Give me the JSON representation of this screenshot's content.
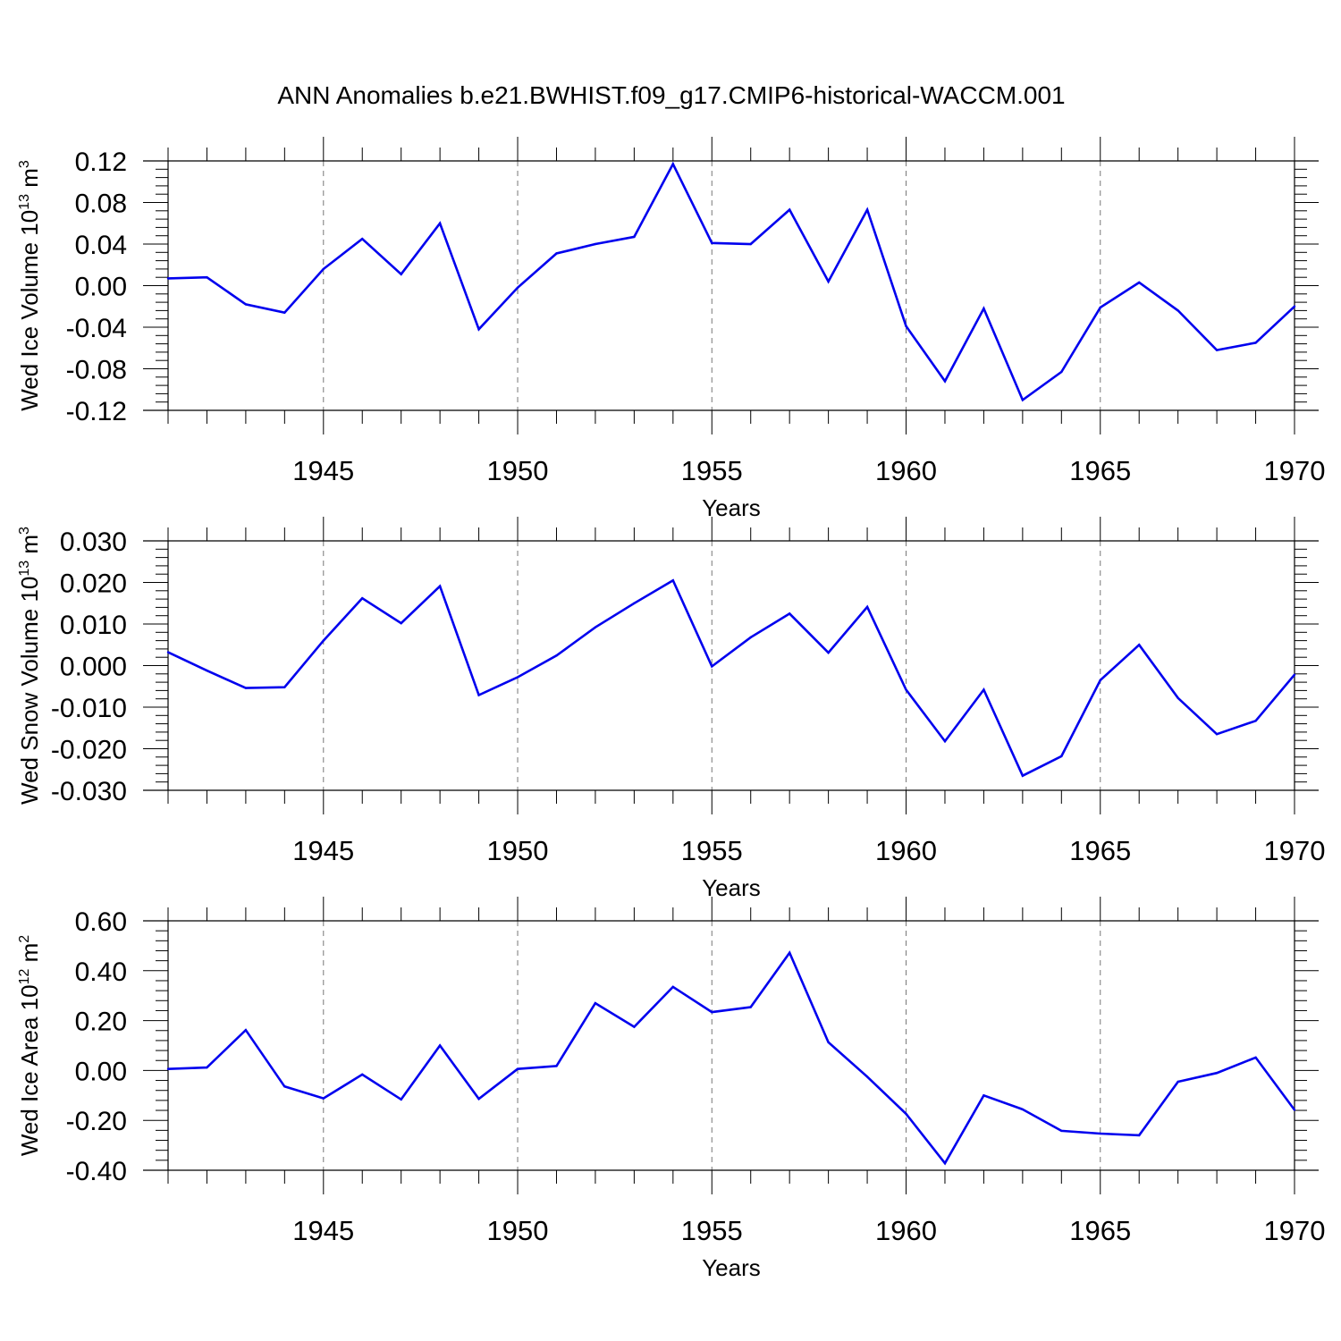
{
  "figure": {
    "title": "ANN Anomalies b.e21.BWHIST.f09_g17.CMIP6-historical-WACCM.001"
  },
  "chart_data": [
    {
      "type": "line",
      "xlabel": "Years",
      "ylabel": {
        "base": "Wed Ice Volume 10",
        "sup1": "13",
        "mid": " m",
        "sup2": "3"
      },
      "xlim": [
        1941,
        1970
      ],
      "ylim": [
        -0.12,
        0.12
      ],
      "xticks": [
        1945,
        1950,
        1955,
        1960,
        1965,
        1970
      ],
      "yticks": [
        -0.12,
        -0.08,
        -0.04,
        0.0,
        0.04,
        0.08,
        0.12
      ],
      "ytick_labels": [
        "-0.12",
        "-0.08",
        "-0.04",
        "0.00",
        "0.04",
        "0.08",
        "0.12"
      ],
      "grid_x": true,
      "color": "#0000ee",
      "x": [
        1941,
        1942,
        1943,
        1944,
        1945,
        1946,
        1947,
        1948,
        1949,
        1950,
        1951,
        1952,
        1953,
        1954,
        1955,
        1956,
        1957,
        1958,
        1959,
        1960,
        1961,
        1962,
        1963,
        1964,
        1965,
        1966,
        1967,
        1968,
        1969,
        1970
      ],
      "values": [
        0.007,
        0.008,
        -0.018,
        -0.026,
        0.016,
        0.045,
        0.011,
        0.06,
        -0.042,
        -0.002,
        0.031,
        0.04,
        0.047,
        0.117,
        0.041,
        0.04,
        0.073,
        0.004,
        0.073,
        -0.039,
        -0.092,
        -0.022,
        -0.11,
        -0.083,
        -0.021,
        0.003,
        -0.024,
        -0.062,
        -0.055,
        -0.02
      ]
    },
    {
      "type": "line",
      "xlabel": "Years",
      "ylabel": {
        "base": "Wed Snow Volume 10",
        "sup1": "13",
        "mid": " m",
        "sup2": "3"
      },
      "xlim": [
        1941,
        1970
      ],
      "ylim": [
        -0.03,
        0.03
      ],
      "xticks": [
        1945,
        1950,
        1955,
        1960,
        1965,
        1970
      ],
      "yticks": [
        -0.03,
        -0.02,
        -0.01,
        0.0,
        0.01,
        0.02,
        0.03
      ],
      "ytick_labels": [
        "-0.030",
        "-0.020",
        "-0.010",
        "0.000",
        "0.010",
        "0.020",
        "0.030"
      ],
      "grid_x": true,
      "color": "#0000ee",
      "x": [
        1941,
        1942,
        1943,
        1944,
        1945,
        1946,
        1947,
        1948,
        1949,
        1950,
        1951,
        1952,
        1953,
        1954,
        1955,
        1956,
        1957,
        1958,
        1959,
        1960,
        1961,
        1962,
        1963,
        1964,
        1965,
        1966,
        1967,
        1968,
        1969,
        1970
      ],
      "values": [
        0.0032,
        -0.0012,
        -0.0054,
        -0.0052,
        0.006,
        0.0162,
        0.0102,
        0.0191,
        -0.0071,
        -0.0028,
        0.0024,
        0.0092,
        0.015,
        0.0205,
        -0.0002,
        0.0068,
        0.0125,
        0.0031,
        0.0141,
        -0.0058,
        -0.0182,
        -0.0058,
        -0.0265,
        -0.0218,
        -0.0035,
        0.005,
        -0.0078,
        -0.0165,
        -0.0133,
        -0.0022
      ]
    },
    {
      "type": "line",
      "xlabel": "Years",
      "ylabel": {
        "base": "Wed Ice Area 10",
        "sup1": "12",
        "mid": " m",
        "sup2": "2"
      },
      "xlim": [
        1941,
        1970
      ],
      "ylim": [
        -0.4,
        0.6
      ],
      "xticks": [
        1945,
        1950,
        1955,
        1960,
        1965,
        1970
      ],
      "yticks": [
        -0.4,
        -0.2,
        0.0,
        0.2,
        0.4,
        0.6
      ],
      "ytick_labels": [
        "-0.40",
        "-0.20",
        "0.00",
        "0.20",
        "0.40",
        "0.60"
      ],
      "grid_x": true,
      "color": "#0000ee",
      "x": [
        1941,
        1942,
        1943,
        1944,
        1945,
        1946,
        1947,
        1948,
        1949,
        1950,
        1951,
        1952,
        1953,
        1954,
        1955,
        1956,
        1957,
        1958,
        1959,
        1960,
        1961,
        1962,
        1963,
        1964,
        1965,
        1966,
        1967,
        1968,
        1969,
        1970
      ],
      "values": [
        0.006,
        0.012,
        0.162,
        -0.064,
        -0.112,
        -0.016,
        -0.116,
        0.1,
        -0.114,
        0.006,
        0.018,
        0.27,
        0.175,
        0.335,
        0.234,
        0.254,
        0.472,
        0.113,
        -0.025,
        -0.174,
        -0.372,
        -0.1,
        -0.156,
        -0.242,
        -0.253,
        -0.26,
        -0.045,
        -0.01,
        0.052,
        -0.158
      ]
    }
  ]
}
